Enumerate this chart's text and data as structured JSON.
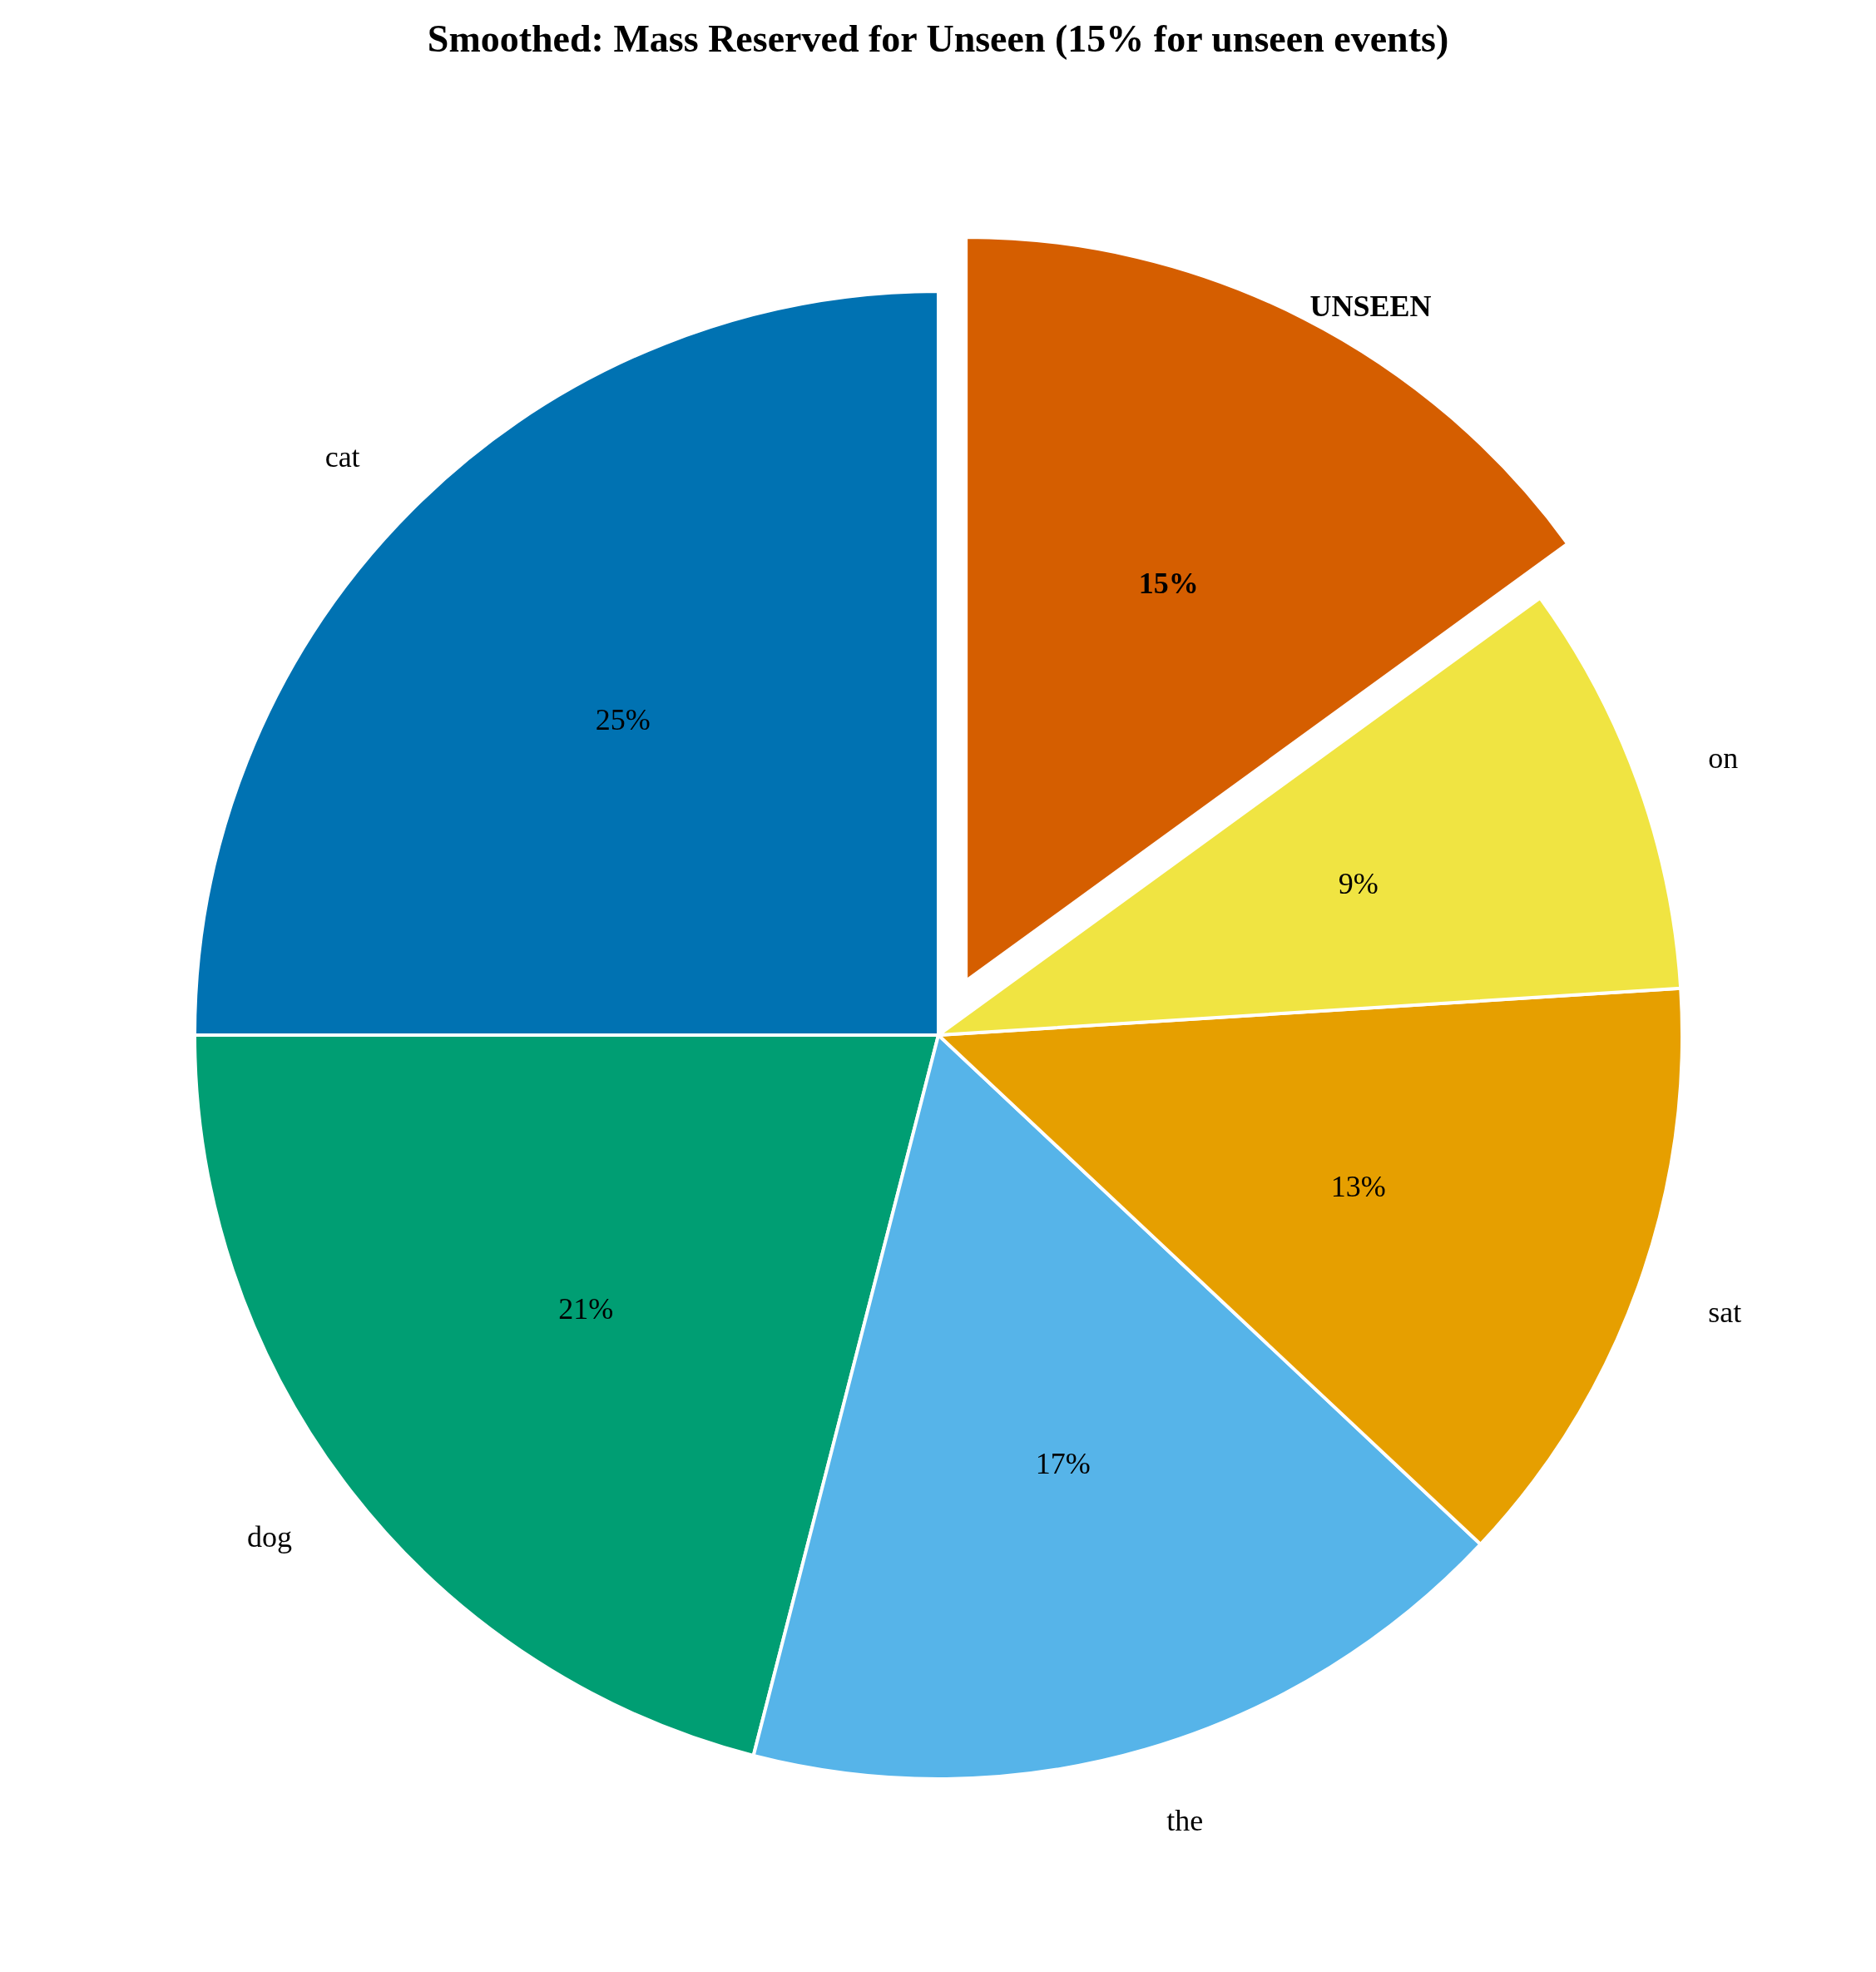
{
  "chart_data": {
    "type": "pie",
    "title": "Smoothed: Mass Reserved for Unseen (15% for unseen events)",
    "categories": [
      "cat",
      "dog",
      "the",
      "sat",
      "on",
      "UNSEEN"
    ],
    "values": [
      25,
      21,
      17,
      13,
      9,
      15
    ],
    "colors": [
      "#0072b2",
      "#009e73",
      "#56b4e9",
      "#e69f00",
      "#f0e442",
      "#d55e00"
    ],
    "value_labels": [
      "25%",
      "21%",
      "17%",
      "13%",
      "9%",
      "15%"
    ]
  }
}
